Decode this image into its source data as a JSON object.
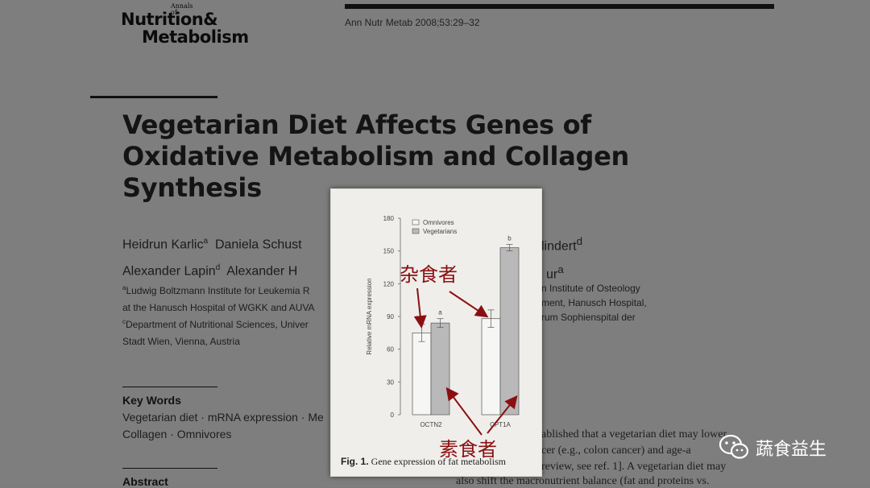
{
  "journal": {
    "small": "Annals of",
    "line1": "Nutrition&",
    "line2": "Metabolism",
    "citation": "Ann Nutr Metab 2008;53:29–32"
  },
  "article": {
    "title_lines": [
      "Vegetarian Diet Affects Genes of",
      "Oxidative Metabolism and Collagen",
      "Synthesis"
    ],
    "authors_left": [
      {
        "name": "Heidrun Karlic",
        "sup": "a",
        "tail": "  Daniela Schust"
      },
      {
        "name": "Alexander Lapin",
        "sup": "d",
        "tail": "  Alexander H"
      }
    ],
    "authors_right": [
      {
        "name": "lindert",
        "sup": "d"
      },
      {
        "name": "ur",
        "sup": "a"
      }
    ],
    "affiliations_left": [
      {
        "sup": "a",
        "text": "Ludwig Boltzmann Institute for Leukemia R"
      },
      {
        "sup": "",
        "text": "at the Hanusch Hospital of WGKK and AUVA"
      },
      {
        "sup": "c",
        "text": "Department of Nutritional Sciences, Univer"
      },
      {
        "sup": "",
        "text": "Stadt Wien, Vienna, Austria"
      }
    ],
    "affiliations_right": [
      "n Institute of Osteology",
      "ment, Hanusch Hospital,",
      "rum Sophienspital der"
    ],
    "keywords_head": "Key Words",
    "keywords_lines": [
      "Vegetarian diet · mRNA expression · Me",
      "Collagen · Omnivores"
    ],
    "abstract_head": "Abstract",
    "intro_head": "n",
    "intro_lines": [
      "ablished that a vegetarian diet may lower",
      "cer (e.g., colon cancer) and age-a",
      "review, see ref. 1]. A vegetarian diet may"
    ],
    "intro_last": "also shift the macronutrient balance (fat and proteins vs."
  },
  "figure": {
    "caption_label": "Fig. 1.",
    "caption_text": " Gene expression of fat metabolism",
    "chart_data": {
      "type": "bar",
      "title": "",
      "xlabel": "",
      "ylabel": "Relative mRNA expression",
      "ylim": [
        0,
        180
      ],
      "yticks": [
        0,
        30,
        60,
        90,
        120,
        150,
        180
      ],
      "categories": [
        "OCTN2",
        "CPT1A"
      ],
      "series": [
        {
          "name": "Omnivores",
          "values": [
            75,
            88
          ],
          "errors": [
            8,
            8
          ],
          "color": "#f6f6f4"
        },
        {
          "name": "Vegetarians",
          "values": [
            84,
            153
          ],
          "errors": [
            4,
            3
          ],
          "color": "#b9b9b9"
        }
      ],
      "bar_labels": {
        "vegetarians": [
          "a",
          "b"
        ]
      },
      "legend": "top-left"
    }
  },
  "annotations": {
    "omnivore_cn": "杂食者",
    "vegetarian_cn": "素食者",
    "arrow_color": "#8b0f12"
  },
  "watermark": {
    "text": "蔬食益生",
    "icon": "wechat-icon"
  }
}
